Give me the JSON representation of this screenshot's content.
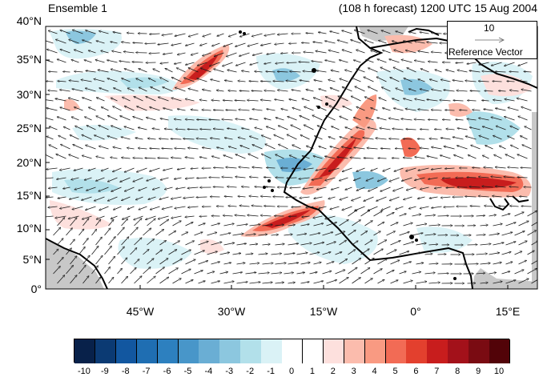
{
  "header": {
    "ensemble": "Ensemble 1",
    "forecast": "(108 h forecast) 1200 UTC 15 Aug 2004"
  },
  "reference_vector": {
    "magnitude": "10",
    "label": "Reference Vector"
  },
  "axes": {
    "lat_labels": [
      "40°N",
      "35°N",
      "30°N",
      "25°N",
      "20°N",
      "15°N",
      "10°N",
      "5°N",
      "0°"
    ],
    "lon_labels": [
      "45°W",
      "30°W",
      "15°W",
      "0°",
      "15°E"
    ]
  },
  "colorbar": {
    "labels": [
      "-10",
      "-9",
      "-8",
      "-7",
      "-6",
      "-5",
      "-4",
      "-3",
      "-2",
      "-1",
      "0",
      "1",
      "2",
      "3",
      "4",
      "5",
      "6",
      "7",
      "8",
      "9",
      "10"
    ],
    "colors": [
      "#08214a",
      "#0b3a73",
      "#1257a0",
      "#1f6eb2",
      "#2d80bf",
      "#4896c9",
      "#6aaed4",
      "#8cc7df",
      "#b2e0ea",
      "#daf2f6",
      "#ffffff",
      "#ffffff",
      "#fde0dd",
      "#fbbcad",
      "#f99a82",
      "#f26b55",
      "#e3402e",
      "#c81d1d",
      "#a3111a",
      "#7a0b12",
      "#520308"
    ]
  },
  "colors": {
    "land_outline": "#000000",
    "missing_gray": "#c8c8c8",
    "vectors": "#1a1a1a"
  }
}
